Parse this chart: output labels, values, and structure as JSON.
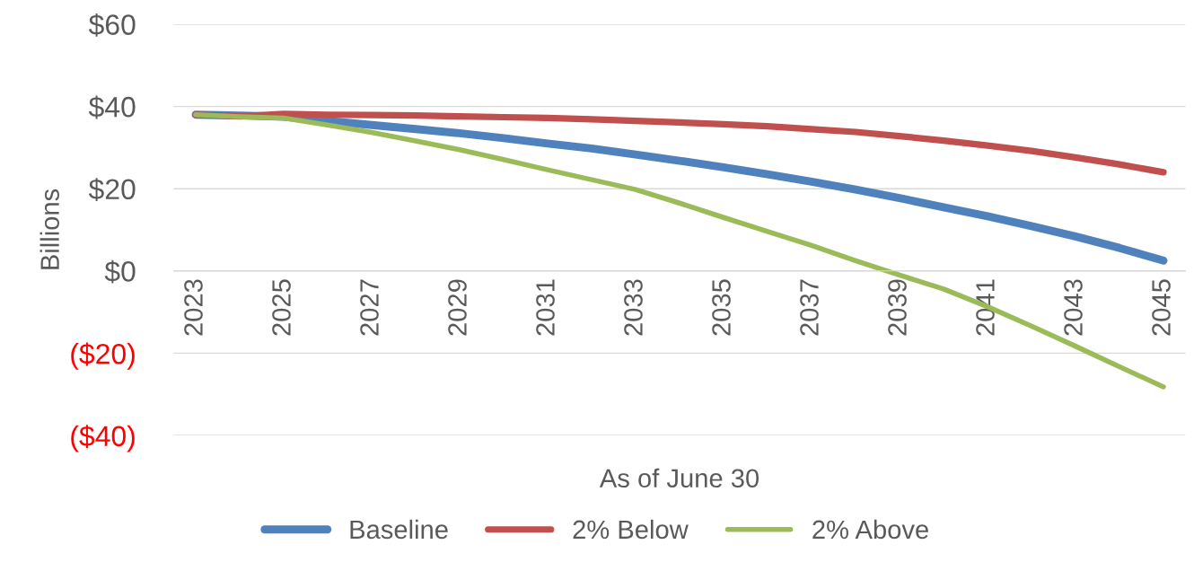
{
  "chart_data": {
    "type": "line",
    "categories": [
      "2023",
      null,
      "2025",
      null,
      "2027",
      null,
      "2029",
      null,
      "2031",
      null,
      "2033",
      null,
      "2035",
      null,
      "2037",
      null,
      "2039",
      null,
      "2041",
      null,
      "2043",
      null,
      "2045"
    ],
    "series": [
      {
        "name": "Baseline",
        "color": "#4f81bd",
        "values": [
          38,
          37.8,
          37.5,
          36.5,
          35.5,
          34.5,
          33.5,
          32.3,
          31,
          29.8,
          28.3,
          26.8,
          25.2,
          23.5,
          21.7,
          19.8,
          17.7,
          15.5,
          13.3,
          10.9,
          8.4,
          5.6,
          2.5
        ]
      },
      {
        "name": "2% Below",
        "color": "#c0504d",
        "values": [
          38,
          37.6,
          38.2,
          38,
          37.9,
          37.8,
          37.6,
          37.4,
          37.2,
          36.9,
          36.5,
          36.1,
          35.7,
          35.2,
          34.5,
          33.8,
          32.8,
          31.7,
          30.5,
          29.2,
          27.6,
          25.9,
          24
        ]
      },
      {
        "name": "2% Above",
        "color": "#9bbb59",
        "values": [
          38,
          37.5,
          37.2,
          35.5,
          33.7,
          31.6,
          29.5,
          27.1,
          24.6,
          22.2,
          19.8,
          16.5,
          13,
          9.6,
          6.2,
          2.5,
          -1,
          -4.4,
          -8.7,
          -13.4,
          -18.3,
          -23.3,
          -28.2
        ]
      }
    ],
    "ylabel": "Billions",
    "xlabel": "As of June 30",
    "ylim": [
      -40,
      60
    ],
    "yticks": [
      {
        "value": -40,
        "label": "($40)"
      },
      {
        "value": -20,
        "label": "($20)"
      },
      {
        "value": 0,
        "label": "$0"
      },
      {
        "value": 20,
        "label": "$20"
      },
      {
        "value": 40,
        "label": "$40"
      },
      {
        "value": 60,
        "label": "$60"
      }
    ],
    "grid": "y",
    "legend": "bottom",
    "marker": "none",
    "line_style": "solid"
  }
}
